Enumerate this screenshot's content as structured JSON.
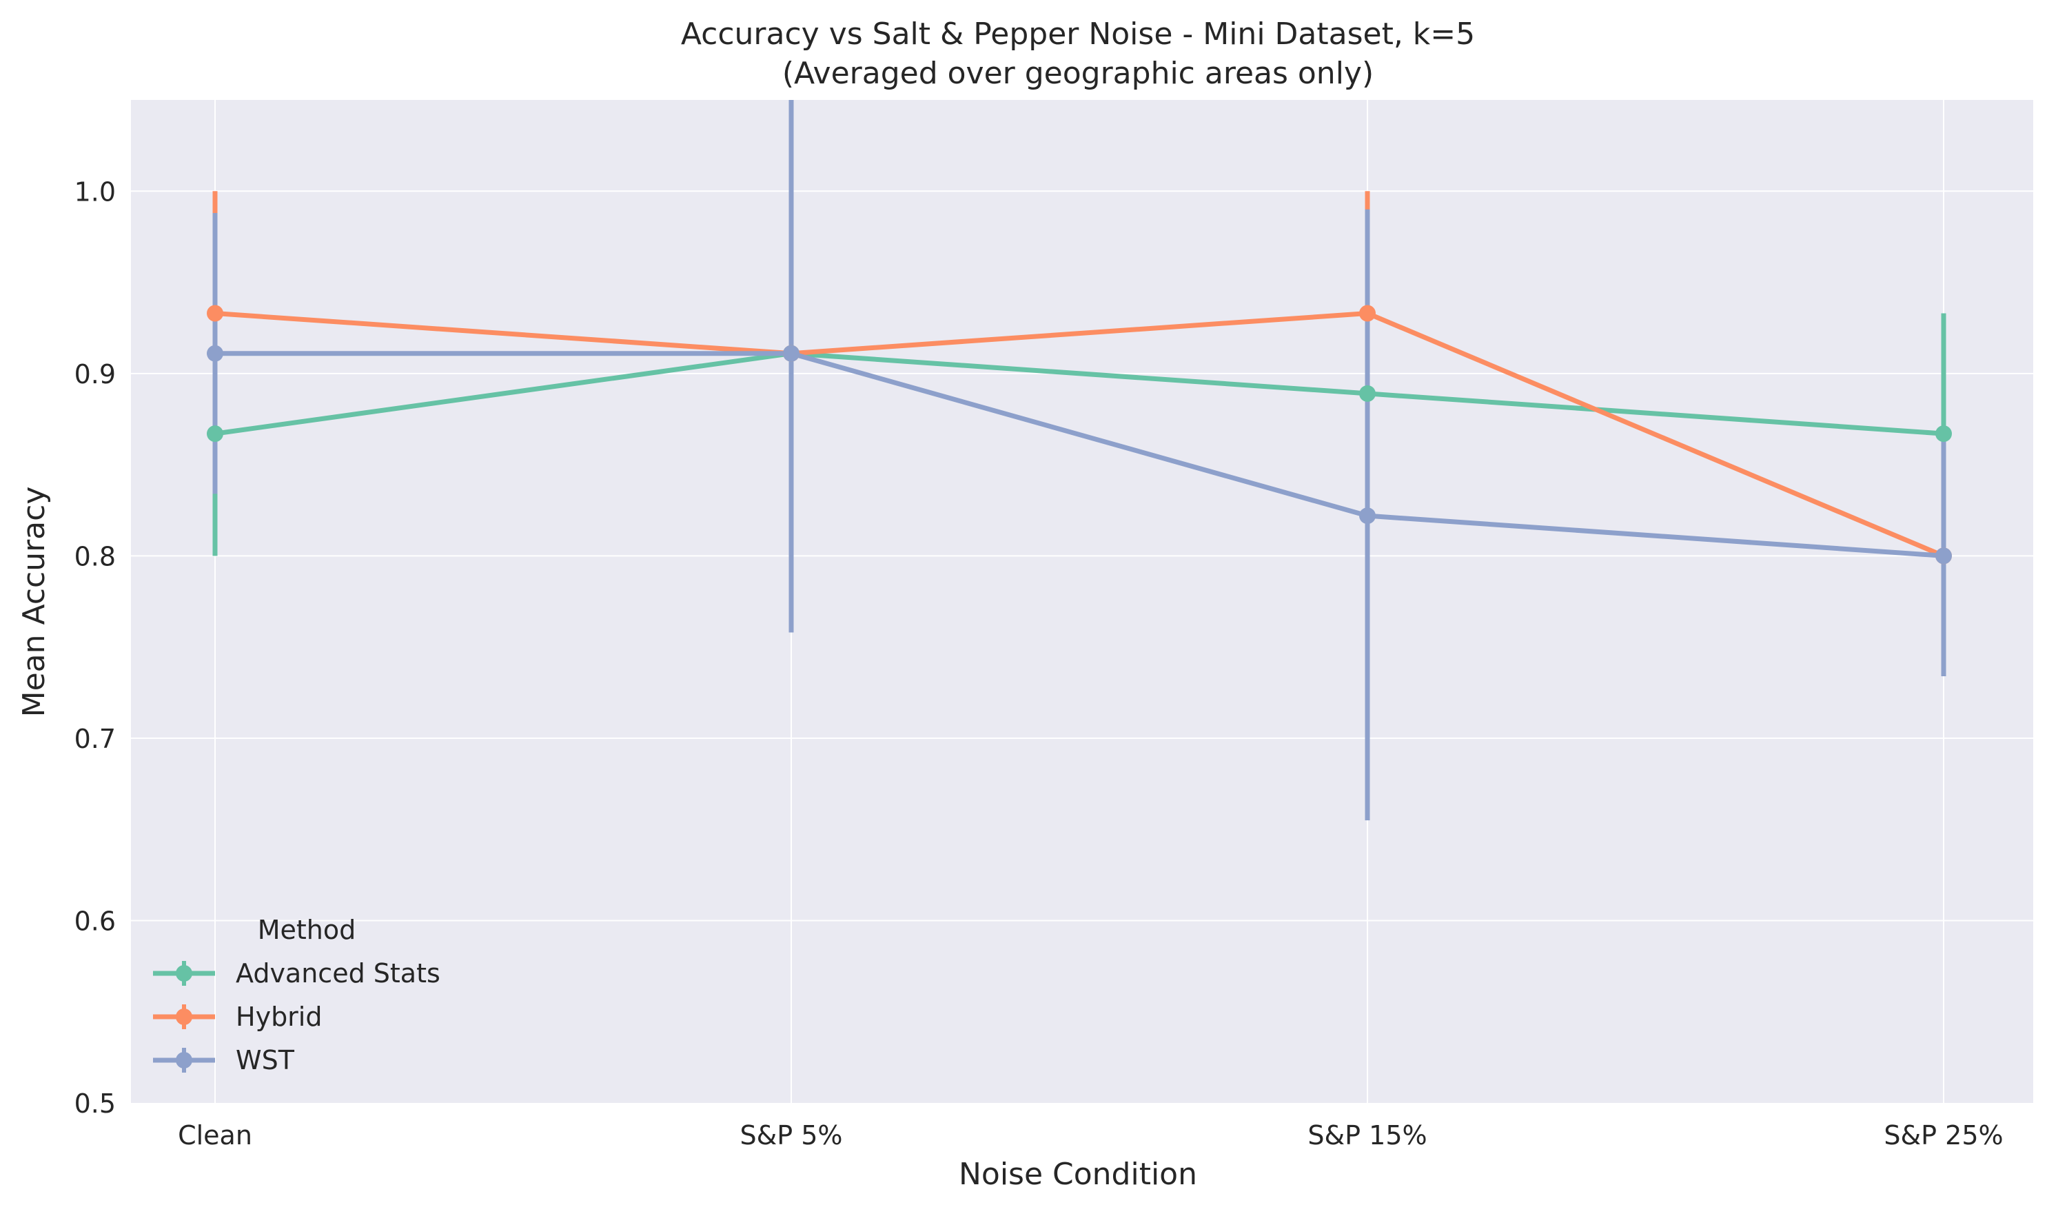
{
  "chart_data": {
    "type": "line",
    "title": "Accuracy vs Salt & Pepper Noise - Mini Dataset, k=5",
    "subtitle": "(Averaged over geographic areas only)",
    "xlabel": "Noise Condition",
    "ylabel": "Mean Accuracy",
    "categories": [
      "Clean",
      "S&P 5%",
      "S&P 15%",
      "S&P 25%"
    ],
    "ylim": [
      0.5,
      1.05
    ],
    "yticks": [
      0.5,
      0.6,
      0.7,
      0.8,
      0.9,
      1.0
    ],
    "ytick_labels": [
      "0.5",
      "0.6",
      "0.7",
      "0.8",
      "0.9",
      "1.0"
    ],
    "grid": true,
    "legend_title": "Method",
    "legend_position": "bottom-left",
    "background": "#eaeaf2",
    "series": [
      {
        "name": "Advanced Stats",
        "color": "#66c2a5",
        "values": [
          0.867,
          0.911,
          0.889,
          0.867
        ],
        "err_low": [
          0.8,
          0.911,
          0.889,
          0.8
        ],
        "err_high": [
          0.933,
          0.911,
          0.889,
          0.933
        ]
      },
      {
        "name": "Hybrid",
        "color": "#fc8d62",
        "values": [
          0.933,
          0.911,
          0.933,
          0.8
        ],
        "err_low": [
          0.867,
          0.911,
          0.867,
          0.8
        ],
        "err_high": [
          1.0,
          0.911,
          1.0,
          0.8
        ]
      },
      {
        "name": "WST",
        "color": "#8da0cb",
        "values": [
          0.911,
          0.911,
          0.822,
          0.8
        ],
        "err_low": [
          0.834,
          0.758,
          0.655,
          0.734
        ],
        "err_high": [
          0.988,
          1.064,
          0.99,
          0.867
        ]
      }
    ]
  }
}
